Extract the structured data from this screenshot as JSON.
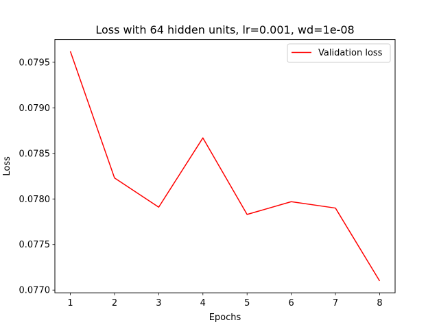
{
  "chart_data": {
    "type": "line",
    "title": "Loss with 64 hidden units, lr=0.001, wd=1e-08",
    "xlabel": "Epochs",
    "ylabel": "Loss",
    "x": [
      1,
      2,
      3,
      4,
      5,
      6,
      7,
      8
    ],
    "xticks": [
      "1",
      "2",
      "3",
      "4",
      "5",
      "6",
      "7",
      "8"
    ],
    "xlim": [
      0.65,
      8.35
    ],
    "ylim": [
      0.07697,
      0.07975
    ],
    "yticks": [
      0.077,
      0.0775,
      0.078,
      0.0785,
      0.079,
      0.0795
    ],
    "yticklabels": [
      "0.0770",
      "0.0775",
      "0.0780",
      "0.0785",
      "0.0790",
      "0.0795"
    ],
    "series": [
      {
        "name": "Validation loss",
        "color": "#ff0000",
        "values": [
          0.07962,
          0.07823,
          0.07791,
          0.07867,
          0.07783,
          0.07797,
          0.0779,
          0.0771
        ]
      }
    ],
    "grid": false,
    "legend_position": "top-right"
  }
}
